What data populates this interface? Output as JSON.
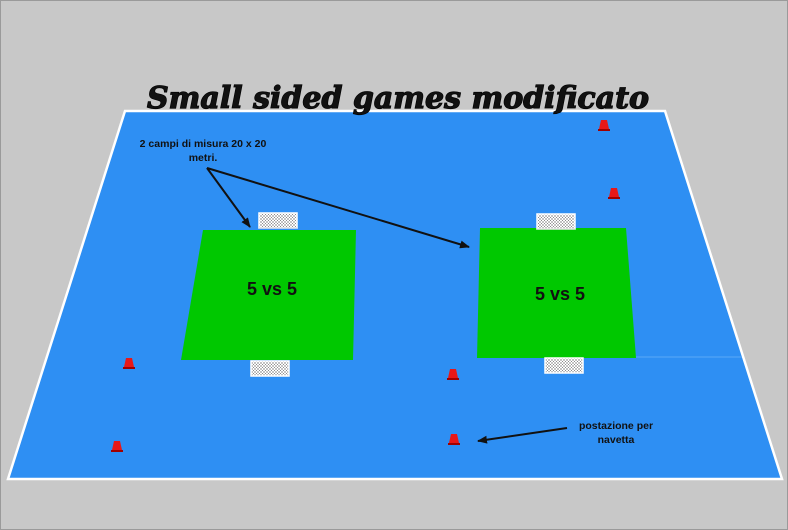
{
  "title": "Small sided games modificato",
  "annotations": {
    "fields_note_line1": "2 campi di misura 20 x 20",
    "fields_note_line2": "metri.",
    "station_note_line1": "postazione per",
    "station_note_line2": "navetta"
  },
  "fields": [
    {
      "label": "5 vs 5"
    },
    {
      "label": "5 vs 5"
    }
  ],
  "colors": {
    "background": "#c8c8c8",
    "pitch": "#2e8ff3",
    "small_field": "#00c800",
    "cone": "#e81818",
    "arrow": "#111111"
  },
  "icons": [
    "goal-icon",
    "cone-icon",
    "arrow-icon"
  ]
}
